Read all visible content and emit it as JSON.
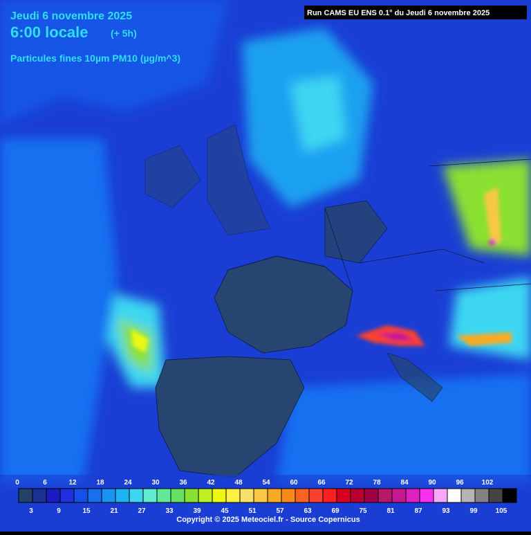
{
  "header": {
    "date": "Jeudi 6 novembre 2025",
    "time": "6:00 locale",
    "lead": "(+ 5h)",
    "variable": "Particules fines 10µm PM10 (µg/m^3)"
  },
  "run_info": "Run CAMS EU ENS 0.1° du Jeudi 6 novembre 2025",
  "legend": {
    "ticks": [
      0,
      3,
      6,
      9,
      12,
      15,
      18,
      21,
      24,
      27,
      30,
      33,
      36,
      39,
      42,
      45,
      48,
      51,
      54,
      57,
      60,
      63,
      66,
      69,
      72,
      75,
      78,
      81,
      84,
      87,
      90,
      93,
      96,
      99,
      102,
      105
    ],
    "colors": [
      "#23416a",
      "#1c3190",
      "#1a1cc0",
      "#1f30dc",
      "#1650e8",
      "#1870f0",
      "#1a92f2",
      "#1cb4f2",
      "#3cd6f2",
      "#60ecd0",
      "#60ea98",
      "#66e064",
      "#8ae032",
      "#bcf022",
      "#eaf812",
      "#fff048",
      "#f8e068",
      "#f8c844",
      "#f8aa22",
      "#f88a18",
      "#f86222",
      "#f84030",
      "#f82020",
      "#d80020",
      "#b80030",
      "#a00044",
      "#b81868",
      "#c81890",
      "#e020c0",
      "#f830f0",
      "#f8a8f8",
      "#ffffff",
      "#b4b4b4",
      "#828282",
      "#444444",
      "#000000"
    ]
  },
  "copyright": "Copyright © 2025 Meteociel.fr - Source Copernicus"
}
